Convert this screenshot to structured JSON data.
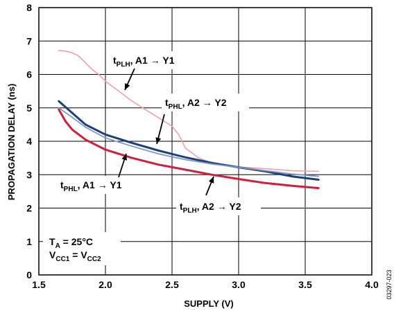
{
  "chart_data": {
    "type": "line",
    "title": "",
    "xlabel": "SUPPLY (V)",
    "ylabel": "PROPAGATION DELAY (ns)",
    "xlim": [
      1.5,
      4.0
    ],
    "ylim": [
      0,
      8
    ],
    "x_ticks": [
      "1.5",
      "2.0",
      "2.5",
      "3.0",
      "3.5",
      "4.0"
    ],
    "y_ticks": [
      "0",
      "1",
      "2",
      "3",
      "4",
      "5",
      "6",
      "7",
      "8"
    ],
    "grid": true,
    "series": [
      {
        "name": "tPLH, A1 → Y1",
        "color": "#f2a0aa",
        "points": [
          [
            1.65,
            6.72
          ],
          [
            1.7,
            6.7
          ],
          [
            1.75,
            6.65
          ],
          [
            1.8,
            6.55
          ],
          [
            1.85,
            6.35
          ],
          [
            1.9,
            6.15
          ],
          [
            1.95,
            6.0
          ],
          [
            2.0,
            5.8
          ],
          [
            2.1,
            5.5
          ],
          [
            2.2,
            5.2
          ],
          [
            2.3,
            4.95
          ],
          [
            2.4,
            4.7
          ],
          [
            2.5,
            4.45
          ],
          [
            2.55,
            4.2
          ],
          [
            2.6,
            3.8
          ],
          [
            2.7,
            3.5
          ],
          [
            2.8,
            3.35
          ],
          [
            2.9,
            3.28
          ],
          [
            3.0,
            3.23
          ],
          [
            3.2,
            3.18
          ],
          [
            3.4,
            3.12
          ],
          [
            3.6,
            3.1
          ]
        ]
      },
      {
        "name": "tPHL, A2 → Y2",
        "color": "#1c3f7c",
        "points": [
          [
            1.65,
            5.2
          ],
          [
            1.75,
            4.85
          ],
          [
            1.85,
            4.5
          ],
          [
            2.0,
            4.2
          ],
          [
            2.2,
            3.95
          ],
          [
            2.4,
            3.72
          ],
          [
            2.6,
            3.52
          ],
          [
            2.8,
            3.35
          ],
          [
            3.0,
            3.22
          ],
          [
            3.2,
            3.1
          ],
          [
            3.4,
            2.95
          ],
          [
            3.6,
            2.85
          ]
        ]
      },
      {
        "name": "tPHL, A1 → Y1",
        "color": "#8096c2",
        "points": [
          [
            1.65,
            5.0
          ],
          [
            1.75,
            4.72
          ],
          [
            1.85,
            4.42
          ],
          [
            2.0,
            4.1
          ],
          [
            2.2,
            3.85
          ],
          [
            2.4,
            3.62
          ],
          [
            2.6,
            3.45
          ],
          [
            2.8,
            3.32
          ],
          [
            3.0,
            3.22
          ],
          [
            3.2,
            3.12
          ],
          [
            3.4,
            3.02
          ],
          [
            3.6,
            2.95
          ]
        ]
      },
      {
        "name": "tPLH, A2 → Y2",
        "color": "#d41c3c",
        "points": [
          [
            1.65,
            4.95
          ],
          [
            1.7,
            4.6
          ],
          [
            1.75,
            4.35
          ],
          [
            1.85,
            4.05
          ],
          [
            2.0,
            3.75
          ],
          [
            2.2,
            3.5
          ],
          [
            2.4,
            3.3
          ],
          [
            2.6,
            3.15
          ],
          [
            2.8,
            3.0
          ],
          [
            3.0,
            2.87
          ],
          [
            3.2,
            2.75
          ],
          [
            3.4,
            2.67
          ],
          [
            3.6,
            2.6
          ]
        ]
      }
    ],
    "annotations": {
      "plh_a1": {
        "t": "t",
        "sub": "PLH",
        "rest": ", A1 → Y1"
      },
      "phl_a2": {
        "t": "t",
        "sub": "PHL",
        "rest": ", A2 → Y2"
      },
      "phl_a1": {
        "t": "t",
        "sub": "PHL",
        "rest": ", A1 → Y1"
      },
      "plh_a2": {
        "t": "t",
        "sub": "PLH",
        "rest": ", A2 → Y2"
      },
      "ta": {
        "t": "T",
        "sub": "A",
        "rest": " = 25°C"
      },
      "vcc_line": {
        "v1": "V",
        "sub1": "CC1",
        "eq": " = V",
        "sub2": "CC2"
      }
    },
    "figure_id": "03297-023"
  }
}
